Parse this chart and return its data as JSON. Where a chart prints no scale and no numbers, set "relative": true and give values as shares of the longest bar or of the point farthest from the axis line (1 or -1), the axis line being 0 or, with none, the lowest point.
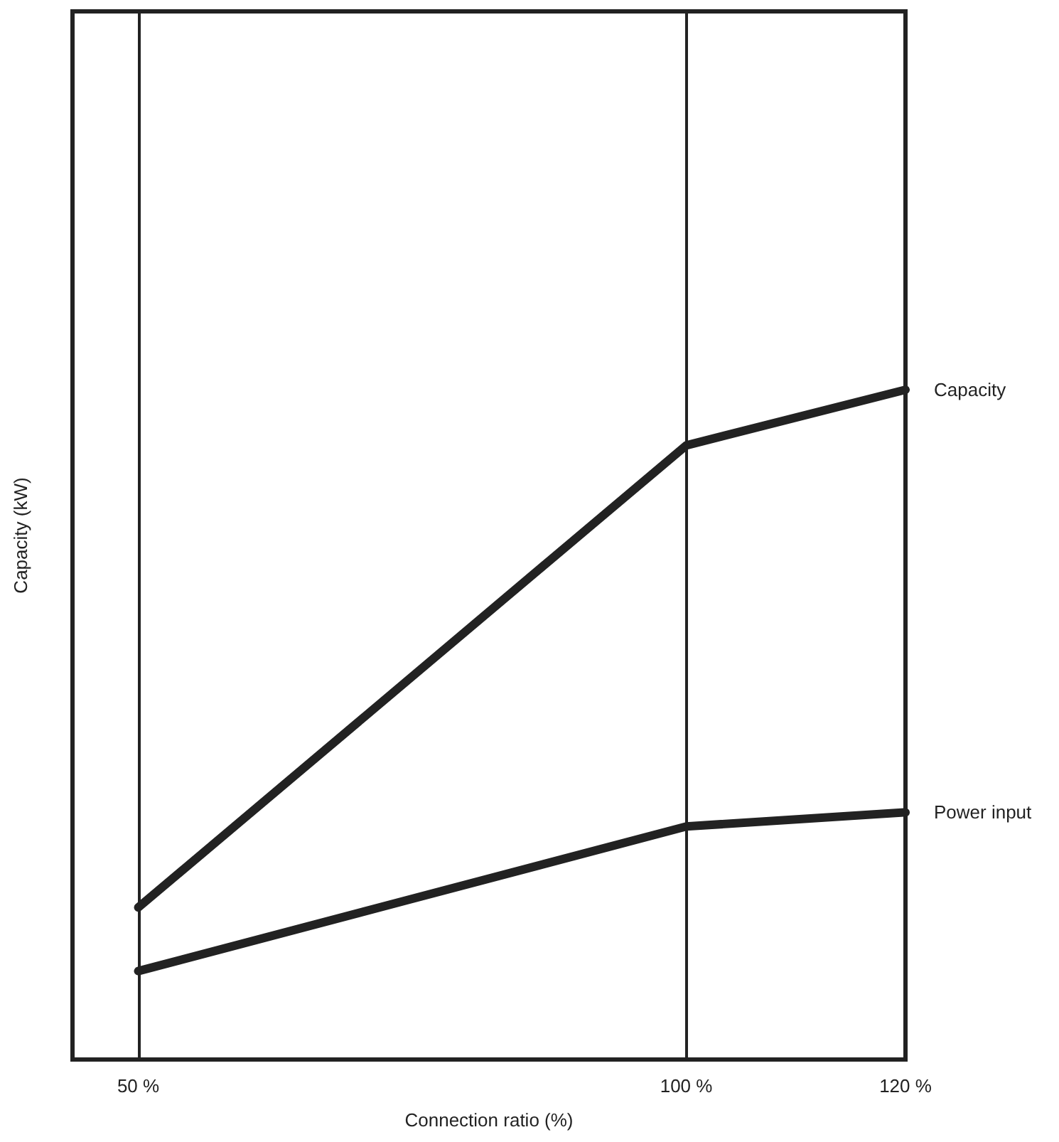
{
  "chart_data": {
    "type": "line",
    "relative": true,
    "xlabel": "Connection ratio (%)",
    "ylabel": "Capacity (kW)",
    "xlim": [
      44,
      120
    ],
    "xticks": [
      {
        "value": 50,
        "label": "50 %"
      },
      {
        "value": 100,
        "label": "100 %"
      },
      {
        "value": 120,
        "label": "120 %"
      }
    ],
    "grid": "x",
    "legend": false,
    "marker": "none",
    "line_style": "solid",
    "series": [
      {
        "name": "Capacity",
        "color": "#222222",
        "x": [
          50,
          100,
          120
        ],
        "values": [
          0.227,
          0.917,
          1
        ]
      },
      {
        "name": "Power input",
        "color": "#222222",
        "x": [
          50,
          100,
          120
        ],
        "values": [
          0.132,
          0.348,
          0.369
        ]
      }
    ]
  }
}
